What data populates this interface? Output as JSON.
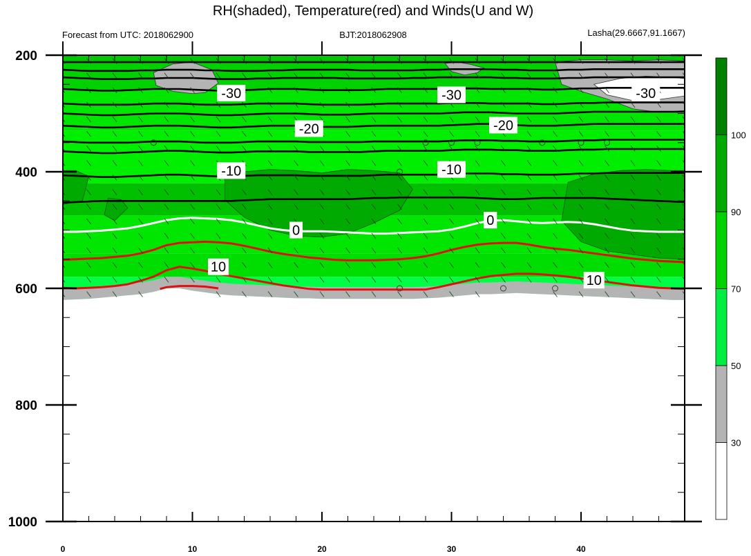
{
  "chart_data": {
    "type": "contour",
    "title": "RH(shaded), Temperature(red) and Winds(U and W)",
    "left_string": "Forecast from UTC: 2018062900",
    "center_string": "BJT:2018062908",
    "right_string": "Lasha(29.6667,91.1667)",
    "x_range": [
      0,
      48
    ],
    "y_range": [
      200,
      1000
    ],
    "y_reversed": true,
    "x_ticks": [
      0,
      10,
      20,
      30,
      40
    ],
    "y_ticks": [
      200,
      400,
      600,
      800,
      1000
    ],
    "colorbar": {
      "levels": [
        30,
        50,
        70,
        90,
        100
      ],
      "colors": [
        "#ffffff",
        "#b4b4b4",
        "#00ee44",
        "#00d200",
        "#00aa00",
        "#008000"
      ]
    },
    "rh_fill_levels": [
      {
        "p": 210,
        "color": "#00d200"
      },
      {
        "p": 260,
        "color": "#00e600"
      },
      {
        "p": 330,
        "color": "#00ee00"
      },
      {
        "p": 420,
        "color": "#00c000"
      },
      {
        "p": 475,
        "color": "#00e600"
      },
      {
        "p": 540,
        "color": "#00dd00"
      },
      {
        "p": 580,
        "color": "#00ff44"
      }
    ],
    "terrain_top_hpa": [
      620,
      619,
      618,
      616,
      614,
      612,
      610,
      606,
      600,
      600,
      604,
      607,
      610,
      612,
      613,
      614,
      615,
      616,
      617,
      617,
      618,
      618,
      618,
      618,
      618,
      618,
      618,
      618,
      617,
      616,
      614,
      612,
      610,
      610,
      609,
      608,
      609,
      610,
      611,
      612,
      613,
      614,
      615,
      616,
      617,
      618,
      619,
      620,
      620
    ],
    "black_isotherms": [
      {
        "p": [
          212,
          212,
          212,
          212,
          212,
          212,
          212,
          212,
          212,
          212,
          212,
          212,
          212,
          212,
          212,
          212,
          212,
          212,
          212,
          212,
          212,
          212,
          212,
          212,
          212,
          212,
          212,
          212,
          212,
          212,
          212,
          212,
          212,
          212,
          212,
          212,
          212,
          212,
          212,
          212,
          212,
          212,
          212,
          212,
          212,
          212,
          212,
          212,
          212
        ]
      },
      {
        "p": [
          225,
          226,
          227,
          227,
          227,
          227,
          226,
          226,
          225,
          225,
          225,
          226,
          226,
          227,
          227,
          227,
          226,
          226,
          225,
          225,
          225,
          225,
          225,
          226,
          226,
          226,
          226,
          226,
          225,
          225,
          224,
          224,
          224,
          224,
          225,
          225,
          226,
          226,
          226,
          225,
          225,
          224,
          224,
          224,
          224,
          224,
          224,
          224,
          224
        ]
      },
      {
        "p": [
          238,
          239,
          240,
          241,
          241,
          241,
          240,
          240,
          239,
          239,
          239,
          240,
          241,
          241,
          241,
          240,
          240,
          239,
          239,
          239,
          239,
          239,
          240,
          240,
          240,
          240,
          240,
          239,
          239,
          238,
          238,
          238,
          238,
          238,
          239,
          239,
          240,
          240,
          240,
          239,
          239,
          238,
          238,
          238,
          238,
          238,
          238,
          238,
          238
        ]
      },
      {
        "p": [
          258,
          259,
          260,
          261,
          261,
          260,
          259,
          258,
          258,
          258,
          259,
          260,
          261,
          261,
          260,
          259,
          258,
          258,
          258,
          259,
          260,
          260,
          260,
          260,
          259,
          258,
          258,
          258,
          258,
          258,
          257,
          257,
          257,
          258,
          258,
          258,
          258,
          259,
          259,
          258,
          257,
          257,
          256,
          256,
          256,
          256,
          256,
          256,
          256
        ]
      },
      {
        "p": [
          283,
          284,
          285,
          285,
          285,
          285,
          284,
          283,
          283,
          283,
          284,
          285,
          285,
          285,
          284,
          283,
          283,
          283,
          283,
          284,
          285,
          285,
          285,
          285,
          284,
          283,
          283,
          283,
          283,
          283,
          282,
          282,
          282,
          283,
          283,
          283,
          283,
          284,
          284,
          283,
          282,
          282,
          281,
          281,
          281,
          281,
          281,
          281,
          281
        ]
      },
      {
        "p": [
          300,
          301,
          302,
          303,
          303,
          302,
          301,
          300,
          300,
          300,
          301,
          302,
          303,
          303,
          302,
          301,
          300,
          300,
          300,
          301,
          302,
          302,
          302,
          301,
          300,
          300,
          300,
          300,
          300,
          300,
          299,
          298,
          298,
          298,
          299,
          300,
          300,
          300,
          300,
          299,
          298,
          297,
          297,
          297,
          297,
          297,
          297,
          297,
          297
        ]
      },
      {
        "p": [
          321,
          322,
          323,
          324,
          324,
          323,
          322,
          321,
          321,
          321,
          322,
          323,
          324,
          324,
          323,
          322,
          321,
          321,
          321,
          322,
          323,
          323,
          323,
          322,
          321,
          321,
          321,
          321,
          321,
          321,
          320,
          319,
          318,
          318,
          319,
          320,
          321,
          321,
          321,
          320,
          319,
          318,
          318,
          318,
          318,
          318,
          318,
          318,
          318
        ]
      },
      {
        "p": [
          348,
          349,
          350,
          350,
          350,
          350,
          349,
          348,
          348,
          348,
          349,
          350,
          350,
          350,
          349,
          348,
          348,
          348,
          348,
          349,
          349,
          349,
          349,
          349,
          348,
          348,
          348,
          348,
          348,
          348,
          347,
          346,
          346,
          346,
          347,
          347,
          348,
          348,
          348,
          347,
          346,
          346,
          345,
          345,
          345,
          345,
          345,
          345,
          345
        ]
      },
      {
        "p": [
          365,
          366,
          367,
          368,
          368,
          367,
          366,
          365,
          364,
          364,
          365,
          366,
          367,
          367,
          366,
          365,
          365,
          365,
          365,
          366,
          366,
          366,
          366,
          366,
          365,
          364,
          364,
          364,
          364,
          364,
          363,
          362,
          362,
          362,
          363,
          363,
          364,
          364,
          364,
          363,
          362,
          362,
          361,
          361,
          361,
          361,
          361,
          361,
          361
        ]
      },
      {
        "p": [
          406,
          407,
          408,
          409,
          409,
          408,
          407,
          406,
          405,
          405,
          406,
          407,
          408,
          408,
          407,
          406,
          406,
          406,
          406,
          407,
          407,
          407,
          407,
          407,
          406,
          405,
          405,
          405,
          405,
          405,
          404,
          403,
          403,
          403,
          404,
          404,
          405,
          405,
          405,
          404,
          403,
          403,
          402,
          402,
          402,
          402,
          402,
          402,
          402
        ]
      },
      {
        "p": [
          453,
          452,
          451,
          450,
          450,
          450,
          450,
          450,
          450,
          450,
          450,
          450,
          450,
          450,
          449,
          448,
          447,
          447,
          447,
          447,
          447,
          447,
          447,
          446,
          445,
          445,
          444,
          444,
          444,
          444,
          444,
          444,
          445,
          446,
          447,
          447,
          446,
          445,
          445,
          445,
          445,
          445,
          446,
          447,
          448,
          449,
          450,
          451,
          452
        ]
      }
    ],
    "zero_isotherm": {
      "p": [
        503,
        503,
        502,
        501,
        499,
        497,
        493,
        488,
        483,
        480,
        479,
        480,
        481,
        483,
        487,
        492,
        497,
        500,
        502,
        502,
        502,
        503,
        504,
        505,
        506,
        506,
        505,
        504,
        503,
        502,
        499,
        494,
        488,
        484,
        483,
        485,
        487,
        488,
        487,
        486,
        487,
        490,
        494,
        498,
        501,
        502,
        503,
        503,
        503
      ]
    },
    "red_isotherms": [
      {
        "p": [
          551,
          550,
          549,
          548,
          546,
          544,
          540,
          534,
          526,
          522,
          521,
          520,
          521,
          523,
          527,
          532,
          537,
          541,
          544,
          547,
          549,
          551,
          552,
          552,
          552,
          551,
          550,
          548,
          545,
          540,
          534,
          529,
          525,
          523,
          522,
          522,
          525,
          529,
          532,
          534,
          537,
          540,
          543,
          546,
          549,
          551,
          553,
          554,
          555
        ]
      },
      {
        "p": [
          599,
          600,
          599,
          598,
          596,
          593,
          587,
          580,
          569,
          563,
          566,
          570,
          575,
          579,
          583,
          587,
          591,
          595,
          598,
          601,
          602,
          602,
          602,
          602,
          602,
          602,
          602,
          602,
          602,
          598,
          593,
          588,
          583,
          579,
          577,
          575,
          575,
          576,
          578,
          580,
          583,
          586,
          589,
          592,
          595,
          597,
          599,
          600,
          601
        ]
      }
    ],
    "red_isotherm_segment": {
      "x": [
        7.5,
        8,
        9,
        10,
        11,
        12
      ],
      "p": [
        601,
        598,
        596,
        596,
        597,
        600
      ]
    },
    "contour_labels": [
      {
        "text": "-30",
        "x": 13,
        "p": 265
      },
      {
        "text": "-30",
        "x": 30,
        "p": 268
      },
      {
        "text": "-30",
        "x": 45,
        "p": 265
      },
      {
        "text": "-20",
        "x": 19,
        "p": 326
      },
      {
        "text": "-20",
        "x": 34,
        "p": 320
      },
      {
        "text": "-10",
        "x": 13,
        "p": 398
      },
      {
        "text": "-10",
        "x": 30,
        "p": 396
      },
      {
        "text": "0",
        "x": 18,
        "p": 500
      },
      {
        "text": "0",
        "x": 33,
        "p": 483
      },
      {
        "text": "10",
        "x": 12,
        "p": 563
      },
      {
        "text": "10",
        "x": 41,
        "p": 586
      }
    ],
    "gray_patches": [
      {
        "x": [
          7,
          8.5,
          10,
          11.5,
          12,
          11,
          10,
          8.5,
          7.2
        ],
        "p": [
          230,
          215,
          212,
          225,
          248,
          264,
          266,
          262,
          252
        ]
      },
      {
        "x": [
          29.5,
          30.5,
          31.5,
          32.5,
          32,
          31,
          30
        ],
        "p": [
          214,
          212,
          216,
          222,
          230,
          234,
          228
        ]
      },
      {
        "x": [
          38,
          40,
          42,
          44,
          46,
          48,
          48,
          46,
          44,
          42,
          40,
          38.5
        ],
        "p": [
          212,
          208,
          208,
          210,
          208,
          210,
          295,
          298,
          292,
          275,
          262,
          250
        ]
      }
    ],
    "white_patches": [
      {
        "x": [
          41,
          43,
          45,
          47,
          48,
          48,
          46,
          44,
          42
        ],
        "p": [
          250,
          240,
          236,
          238,
          240,
          270,
          276,
          278,
          268
        ]
      }
    ],
    "dark_patches": [
      {
        "x": [
          0,
          1,
          2,
          1.5,
          0
        ],
        "p": [
          398,
          398,
          408,
          450,
          456
        ]
      },
      {
        "x": [
          12.5,
          14,
          16,
          18,
          20,
          22,
          24,
          26,
          27,
          26,
          24,
          22,
          20,
          18,
          16,
          14,
          12.5
        ],
        "p": [
          410,
          400,
          396,
          398,
          402,
          396,
          398,
          402,
          430,
          466,
          488,
          506,
          512,
          510,
          500,
          478,
          448
        ]
      },
      {
        "x": [
          39,
          41,
          43,
          45,
          47,
          48,
          48,
          46,
          44,
          42,
          40,
          38.5
        ],
        "p": [
          418,
          404,
          398,
          396,
          398,
          398,
          550,
          548,
          542,
          536,
          520,
          484
        ]
      },
      {
        "x": [
          3.5,
          4.5,
          5,
          4,
          3.2
        ],
        "p": [
          445,
          448,
          462,
          484,
          474
        ]
      }
    ],
    "wind_barb_interval": 2,
    "calm_markers": [
      {
        "x": 7,
        "p": 350
      },
      {
        "x": 28,
        "p": 350
      },
      {
        "x": 30,
        "p": 350
      },
      {
        "x": 32,
        "p": 350
      },
      {
        "x": 37,
        "p": 350
      },
      {
        "x": 40,
        "p": 350
      },
      {
        "x": 42,
        "p": 350
      },
      {
        "x": 26,
        "p": 400
      },
      {
        "x": 26,
        "p": 600
      },
      {
        "x": 34,
        "p": 600
      },
      {
        "x": 38,
        "p": 600
      }
    ]
  }
}
